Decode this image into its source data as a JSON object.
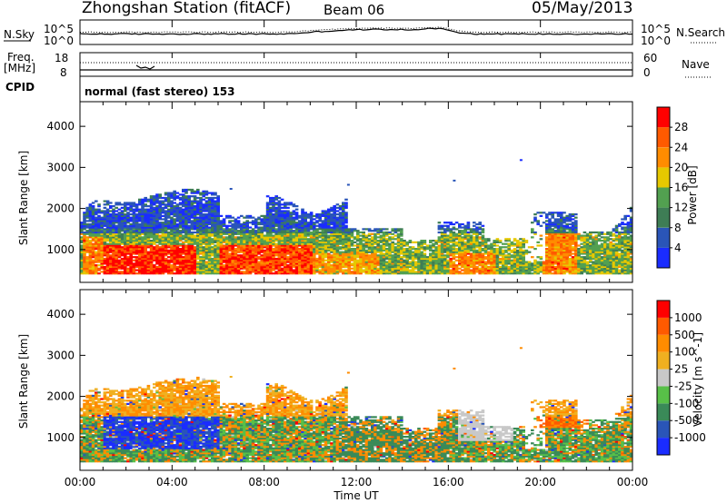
{
  "header": {
    "station": "Zhongshan Station (fitACF)",
    "beam": "Beam 06",
    "date": "05/May/2013"
  },
  "panels": {
    "nsky_label": "N.Sky",
    "nsky_ticks": [
      "10^5",
      "10^0"
    ],
    "nsearch_label": "N.Search",
    "nsearch_ticks": [
      "10^5",
      "10^0"
    ],
    "freq_label_line1": "Freq.",
    "freq_label_line2": "[MHz]",
    "freq_ticks": [
      "18",
      "8"
    ],
    "nave_label": "Nave",
    "nave_ticks": [
      "60",
      "0"
    ],
    "cpid_label": "CPID",
    "cpid_text": "normal (fast stereo) 153"
  },
  "colors": {
    "power": [
      "#1a2cff",
      "#2a55b8",
      "#3e7d55",
      "#52a050",
      "#e6c800",
      "#ff8c00",
      "#ff5a00",
      "#ff0000"
    ],
    "velocity": [
      "#ff0000",
      "#ff5a00",
      "#ff8c00",
      "#f0b020",
      "#c8c8c8",
      "#58c048",
      "#3a8a58",
      "#2a55b8",
      "#1a2cff"
    ]
  },
  "chart_data": [
    {
      "type": "heatmap",
      "name": "power",
      "ylabel": "Slant Range [km]",
      "ylim": [
        200,
        4600
      ],
      "yticks": [
        1000,
        2000,
        3000,
        4000
      ],
      "xlim_hours": [
        0,
        24
      ],
      "colorbar_label": "Power [dB]",
      "colorbar_ticks": [
        "4",
        "8",
        "12",
        "16",
        "20",
        "24",
        "28"
      ],
      "colorbar_range": [
        0,
        30
      ]
    },
    {
      "type": "heatmap",
      "name": "velocity",
      "ylabel": "Slant Range [km]",
      "ylim": [
        200,
        4600
      ],
      "yticks": [
        1000,
        2000,
        3000,
        4000
      ],
      "xlim_hours": [
        0,
        24
      ],
      "colorbar_label": "Velocity [m s^-1]",
      "colorbar_ticks": [
        "1000",
        "500",
        "100",
        "25",
        "-25",
        "-100",
        "-500",
        "-1000"
      ]
    }
  ],
  "xaxis": {
    "label": "Time UT",
    "ticks": [
      "00:00",
      "04:00",
      "08:00",
      "12:00",
      "16:00",
      "20:00",
      "00:00"
    ]
  }
}
